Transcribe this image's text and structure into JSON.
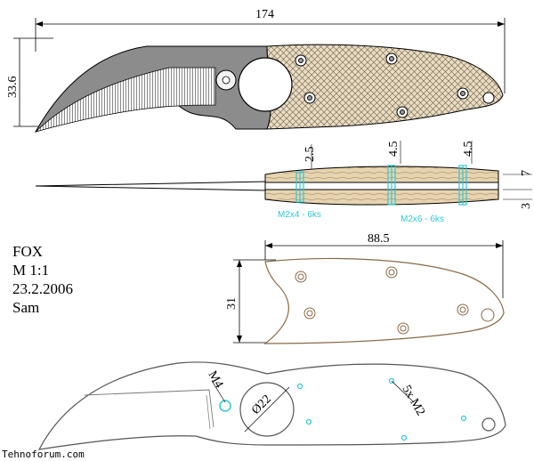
{
  "info": {
    "name": "FOX",
    "scale": "M 1:1",
    "date": "23.2.2006",
    "author": "Sam"
  },
  "dimensions": {
    "overall_length": "174",
    "blade_height": "33.6",
    "thick_a": "2.5",
    "thick_b": "4.5",
    "thick_c": "4.5",
    "scale_thick": "7",
    "liner_thick": "3",
    "scale_length": "88.5",
    "scale_height": "31",
    "ring_hole": "Ø22",
    "pivot_hole": "M4",
    "screw_holes": "5x M2"
  },
  "screws": {
    "short": "M2x4 - 6ks",
    "long": "M2x6 - 6ks"
  },
  "watermark": "Tehnoforum.com",
  "colors": {
    "blade_gray": "#8c8c8c",
    "scale_fill": "#e9dcc3",
    "scale_stroke": "#8a6a45",
    "screw_cyan": "#2fc8d6",
    "line": "#000000"
  }
}
